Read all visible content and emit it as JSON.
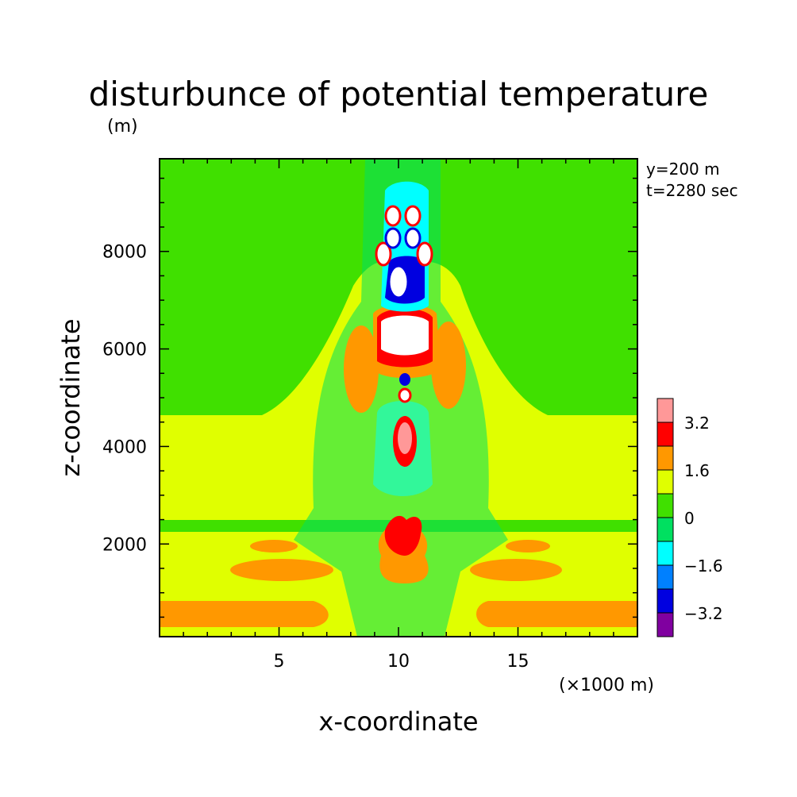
{
  "chart_data": {
    "type": "heatmap",
    "subtype": "filled-contour",
    "title": "disturbunce of potential temperature",
    "title_unit": "(m)",
    "xlabel": "x-coordinate",
    "ylabel": "z-coordinate",
    "x_unit": "(×1000 m)",
    "annotations": [
      "y=200 m",
      "t=2280 sec"
    ],
    "xlim": [
      0,
      20
    ],
    "ylim": [
      100,
      9900
    ],
    "x_ticks": [
      {
        "value": 5,
        "label": "5"
      },
      {
        "value": 10,
        "label": "10"
      },
      {
        "value": 15,
        "label": "15"
      }
    ],
    "y_ticks": [
      {
        "value": 2000,
        "label": "2000"
      },
      {
        "value": 4000,
        "label": "4000"
      },
      {
        "value": 6000,
        "label": "6000"
      },
      {
        "value": 8000,
        "label": "8000"
      }
    ],
    "colorbar": {
      "levels": [
        -4.0,
        -3.2,
        -2.4,
        -1.6,
        -0.8,
        0,
        0.8,
        1.6,
        2.4,
        3.2,
        4.0
      ],
      "colors": [
        "#8000a0",
        "#0000e0",
        "#0080ff",
        "#00ffff",
        "#00e060",
        "#40e000",
        "#e0ff00",
        "#ff9800",
        "#ff0000",
        "#ff9898"
      ],
      "tick_labels": [
        {
          "value": -3.2,
          "label": "−3.2"
        },
        {
          "value": -1.6,
          "label": "−1.6"
        },
        {
          "value": 0,
          "label": "0"
        },
        {
          "value": 1.6,
          "label": "1.6"
        },
        {
          "value": 3.2,
          "label": "3.2"
        }
      ]
    },
    "field_description_regions": [
      {
        "value": 1.2,
        "kind": "band",
        "z_range": [
          100,
          700
        ],
        "x_range": [
          0,
          20
        ]
      },
      {
        "value": 2.0,
        "kind": "blob",
        "x": 4.7,
        "z": 400,
        "rx": 4.7,
        "rz": 300
      },
      {
        "value": 2.0,
        "kind": "blob",
        "x": 16.7,
        "z": 400,
        "rx": 3.5,
        "rz": 300
      },
      {
        "value": 2.0,
        "kind": "blob",
        "x": 5.2,
        "z": 1350,
        "rx": 2.7,
        "rz": 250
      },
      {
        "value": 2.0,
        "kind": "blob",
        "x": 15.0,
        "z": 1350,
        "rx": 2.3,
        "rz": 250
      },
      {
        "value": 2.0,
        "kind": "blob",
        "x": 5.0,
        "z": 2100,
        "rx": 1.3,
        "rz": 120
      },
      {
        "value": 2.0,
        "kind": "blob",
        "x": 15.3,
        "z": 2100,
        "rx": 1.2,
        "rz": 120
      },
      {
        "value": 3.0,
        "kind": "blob",
        "x": 10.1,
        "z": 2150,
        "rx": 0.9,
        "rz": 400
      },
      {
        "value": 4.0,
        "kind": "blob",
        "x": 10.1,
        "z": 4100,
        "rx": 0.4,
        "rz": 450
      },
      {
        "value": 4.0,
        "kind": "blob",
        "x": 10.0,
        "z": 6300,
        "rx": 1.0,
        "rz": 400
      },
      {
        "value": -3.0,
        "kind": "blob",
        "x": 9.8,
        "z": 7300,
        "rx": 0.4,
        "rz": 350
      },
      {
        "value": 4.0,
        "kind": "blob",
        "x": 9.5,
        "z": 8800,
        "rx": 0.3,
        "rz": 200
      },
      {
        "value": 4.0,
        "kind": "blob",
        "x": 10.3,
        "z": 8800,
        "rx": 0.3,
        "rz": 200
      }
    ]
  }
}
